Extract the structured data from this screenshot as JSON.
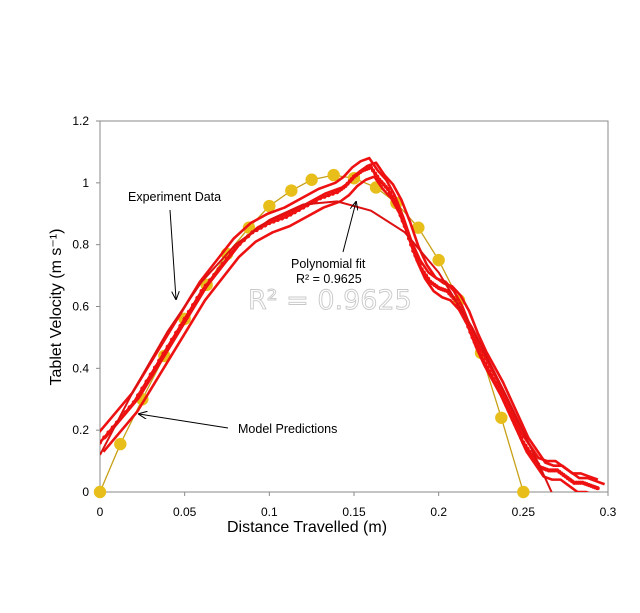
{
  "chart_data": {
    "type": "scatter",
    "xlabel": "Distance Travelled (m)",
    "ylabel": "Tablet Velocity (m s⁻¹)",
    "xlim": [
      0,
      0.3
    ],
    "ylim": [
      0,
      1.2
    ],
    "x_ticks": [
      "0",
      "0.05",
      "0.1",
      "0.15",
      "0.2",
      "0.25",
      "0.3"
    ],
    "y_ticks": [
      "0",
      "0.2",
      "0.4",
      "0.6",
      "0.8",
      "1",
      "1.2"
    ],
    "grid": false,
    "annotations": {
      "experiment": "Experiment Data",
      "polynomial": "Polynomial fit",
      "r2_line": "R² = 0.9625",
      "model": "Model Predictions",
      "r2_ghost": "R² = 0.9625"
    },
    "colors": {
      "experiment": "#ee1111",
      "polynomial": "#dd1111",
      "model": "#e8bf1a",
      "model_line": "#c8a018"
    },
    "series": [
      {
        "values": [
          [
            0.0,
            0.0
          ],
          [
            0.012,
            0.155
          ],
          [
            0.025,
            0.3
          ],
          [
            0.038,
            0.44
          ],
          [
            0.05,
            0.56
          ],
          [
            0.063,
            0.67
          ],
          [
            0.075,
            0.77
          ],
          [
            0.088,
            0.855
          ],
          [
            0.1,
            0.925
          ],
          [
            0.113,
            0.975
          ],
          [
            0.125,
            1.01
          ],
          [
            0.138,
            1.025
          ],
          [
            0.15,
            1.015
          ],
          [
            0.163,
            0.985
          ],
          [
            0.175,
            0.935
          ],
          [
            0.188,
            0.855
          ],
          [
            0.2,
            0.75
          ],
          [
            0.212,
            0.62
          ],
          [
            0.225,
            0.45
          ],
          [
            0.237,
            0.24
          ],
          [
            0.25,
            0.0
          ]
        ]
      },
      {
        "values": [
          [
            0.0,
            0.16
          ],
          [
            0.01,
            0.225
          ],
          [
            0.02,
            0.29
          ],
          [
            0.03,
            0.38
          ],
          [
            0.04,
            0.47
          ],
          [
            0.05,
            0.56
          ],
          [
            0.06,
            0.65
          ],
          [
            0.07,
            0.72
          ],
          [
            0.08,
            0.79
          ],
          [
            0.09,
            0.84
          ],
          [
            0.1,
            0.87
          ],
          [
            0.11,
            0.89
          ],
          [
            0.12,
            0.92
          ],
          [
            0.13,
            0.95
          ],
          [
            0.14,
            0.97
          ],
          [
            0.145,
            0.99
          ],
          [
            0.15,
            1.02
          ],
          [
            0.155,
            1.04
          ],
          [
            0.16,
            1.05
          ],
          [
            0.165,
            1.01
          ],
          [
            0.17,
            0.98
          ],
          [
            0.175,
            0.93
          ],
          [
            0.18,
            0.86
          ],
          [
            0.185,
            0.78
          ],
          [
            0.19,
            0.72
          ],
          [
            0.195,
            0.68
          ],
          [
            0.2,
            0.66
          ],
          [
            0.205,
            0.65
          ],
          [
            0.21,
            0.62
          ],
          [
            0.215,
            0.57
          ],
          [
            0.22,
            0.5
          ],
          [
            0.225,
            0.44
          ],
          [
            0.23,
            0.39
          ],
          [
            0.235,
            0.34
          ],
          [
            0.24,
            0.28
          ],
          [
            0.245,
            0.22
          ],
          [
            0.25,
            0.16
          ],
          [
            0.255,
            0.12
          ],
          [
            0.26,
            0.08
          ],
          [
            0.265,
            0.07
          ],
          [
            0.27,
            0.07
          ],
          [
            0.275,
            0.05
          ],
          [
            0.28,
            0.03
          ],
          [
            0.285,
            0.03
          ],
          [
            0.29,
            0.02
          ],
          [
            0.295,
            0.01
          ]
        ]
      },
      {
        "values": [
          [
            0.0,
            0.12
          ],
          [
            0.02,
            0.33
          ],
          [
            0.04,
            0.52
          ],
          [
            0.06,
            0.68
          ],
          [
            0.08,
            0.8
          ],
          [
            0.1,
            0.88
          ],
          [
            0.12,
            0.93
          ],
          [
            0.14,
            0.94
          ],
          [
            0.16,
            0.91
          ],
          [
            0.18,
            0.84
          ],
          [
            0.2,
            0.71
          ],
          [
            0.22,
            0.53
          ],
          [
            0.24,
            0.31
          ],
          [
            0.26,
            0.08
          ],
          [
            0.27,
            -0.04
          ]
        ]
      }
    ]
  }
}
